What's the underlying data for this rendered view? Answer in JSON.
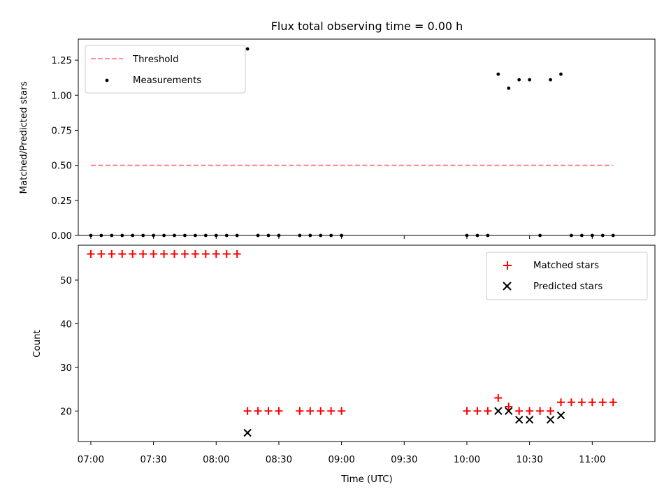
{
  "chart_data": [
    {
      "type": "scatter",
      "title": "Flux total observing time = 0.00 h",
      "xlabel": "",
      "ylabel": "Matched/Predicted stars",
      "xlim": [
        "06:54",
        "11:30"
      ],
      "ylim": [
        0,
        1.4
      ],
      "yticks": [
        "0.00",
        "0.25",
        "0.50",
        "0.75",
        "1.00",
        "1.25"
      ],
      "grid": false,
      "legend_position": "top-left",
      "series": [
        {
          "name": "Threshold",
          "kind": "dashed-line",
          "color": "#ff7070",
          "x": [
            "07:00",
            "11:10"
          ],
          "y": [
            0.5,
            0.5
          ]
        },
        {
          "name": "Measurements",
          "kind": "scatter",
          "color": "#000000",
          "x": [
            "07:00",
            "07:05",
            "07:10",
            "07:15",
            "07:20",
            "07:25",
            "07:30",
            "07:35",
            "07:40",
            "07:45",
            "07:50",
            "07:55",
            "08:00",
            "08:05",
            "08:10",
            "08:15",
            "08:20",
            "08:25",
            "08:30",
            "08:40",
            "08:45",
            "08:50",
            "08:55",
            "09:00",
            "10:00",
            "10:05",
            "10:10",
            "10:15",
            "10:20",
            "10:25",
            "10:30",
            "10:35",
            "10:40",
            "10:45",
            "10:50",
            "10:55",
            "11:00",
            "11:05",
            "11:10"
          ],
          "y": [
            0,
            0,
            0,
            0,
            0,
            0,
            0,
            0,
            0,
            0,
            0,
            0,
            0,
            0,
            0,
            1.33,
            0,
            0,
            0,
            0,
            0,
            0,
            0,
            0,
            0,
            0,
            0,
            1.15,
            1.05,
            1.11,
            1.11,
            0,
            1.11,
            1.15,
            0,
            0,
            0,
            0,
            0
          ]
        }
      ]
    },
    {
      "type": "scatter",
      "title": "",
      "xlabel": "Time (UTC)",
      "ylabel": "Count",
      "xlim": [
        "06:54",
        "11:30"
      ],
      "ylim": [
        13,
        58
      ],
      "xticks": [
        "07:00",
        "07:30",
        "08:00",
        "08:30",
        "09:00",
        "09:30",
        "10:00",
        "10:30",
        "11:00"
      ],
      "yticks": [
        "20",
        "30",
        "40",
        "50"
      ],
      "grid": false,
      "legend_position": "top-right",
      "series": [
        {
          "name": "Matched stars",
          "marker": "plus",
          "color": "#ff0000",
          "x": [
            "07:00",
            "07:05",
            "07:10",
            "07:15",
            "07:20",
            "07:25",
            "07:30",
            "07:35",
            "07:40",
            "07:45",
            "07:50",
            "07:55",
            "08:00",
            "08:05",
            "08:10",
            "08:15",
            "08:20",
            "08:25",
            "08:30",
            "08:40",
            "08:45",
            "08:50",
            "08:55",
            "09:00",
            "10:00",
            "10:05",
            "10:10",
            "10:15",
            "10:20",
            "10:25",
            "10:30",
            "10:35",
            "10:40",
            "10:45",
            "10:50",
            "10:55",
            "11:00",
            "11:05",
            "11:10"
          ],
          "y": [
            56,
            56,
            56,
            56,
            56,
            56,
            56,
            56,
            56,
            56,
            56,
            56,
            56,
            56,
            56,
            20,
            20,
            20,
            20,
            20,
            20,
            20,
            20,
            20,
            20,
            20,
            20,
            23,
            21,
            20,
            20,
            20,
            20,
            22,
            22,
            22,
            22,
            22,
            22
          ]
        },
        {
          "name": "Predicted stars",
          "marker": "x",
          "color": "#000000",
          "x": [
            "08:15",
            "10:15",
            "10:20",
            "10:25",
            "10:30",
            "10:40",
            "10:45"
          ],
          "y": [
            15,
            20,
            20,
            18,
            18,
            18,
            19
          ]
        }
      ]
    }
  ]
}
